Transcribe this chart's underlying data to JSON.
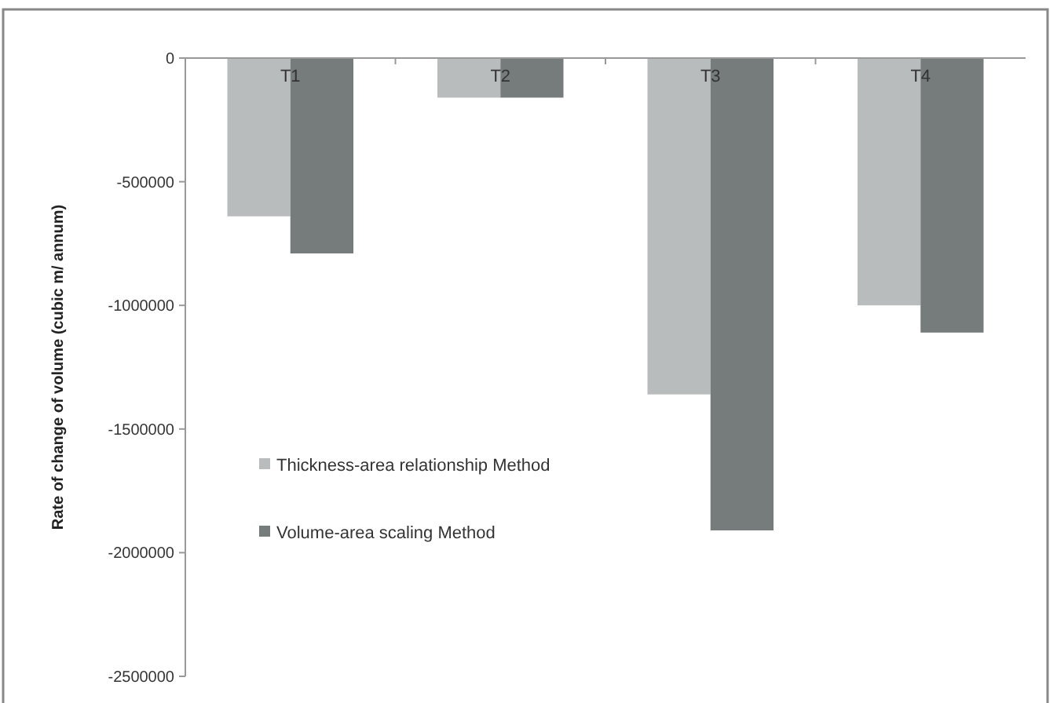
{
  "chart_data": {
    "type": "bar",
    "ylabel": "Rate of change of volume (cubic m/ annum)",
    "categories": [
      "T1",
      "T2",
      "T3",
      "T4"
    ],
    "series": [
      {
        "name": "Thickness-area relationship Method",
        "color": "#b9bcbd",
        "values": [
          -640000,
          -160000,
          -1360000,
          -1000000
        ]
      },
      {
        "name": "Volume-area scaling Method",
        "color": "#767b7c",
        "values": [
          -790000,
          -160000,
          -1910000,
          -1110000
        ]
      }
    ],
    "ylim": [
      -2500000,
      0
    ],
    "yticks": [
      -2500000,
      -2000000,
      -1500000,
      -1000000,
      -500000,
      0
    ],
    "legend": "left",
    "grid": false
  }
}
